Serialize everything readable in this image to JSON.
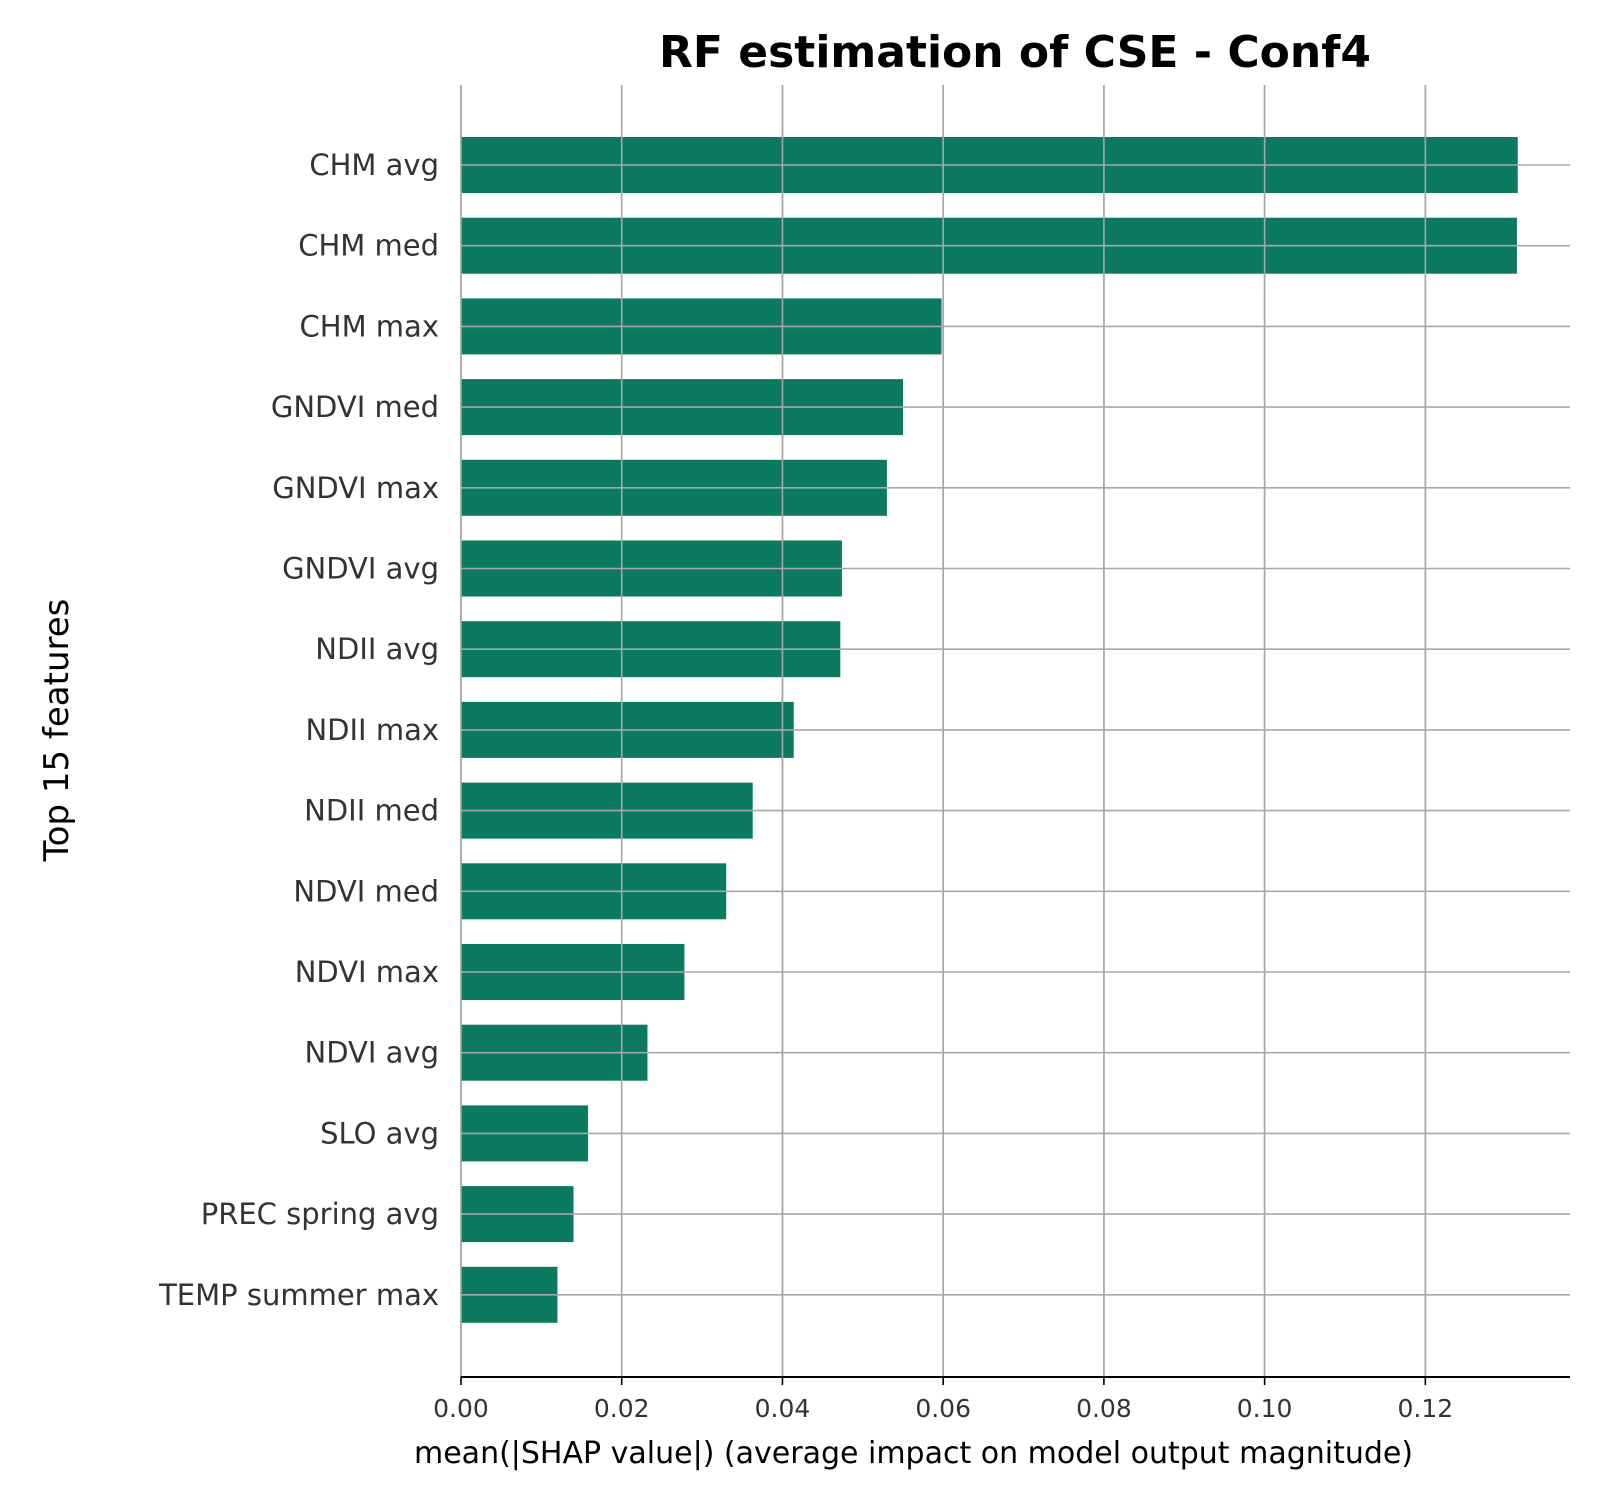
{
  "chart_data": {
    "type": "bar",
    "orientation": "horizontal",
    "title": "RF estimation of CSE - Conf4",
    "xlabel": "mean(|SHAP value|) (average impact on model output magnitude)",
    "ylabel": "Top 15 features",
    "categories": [
      "CHM avg",
      "CHM med",
      "CHM max",
      "GNDVI med",
      "GNDVI max",
      "GNDVI avg",
      "NDII avg",
      "NDII max",
      "NDII med",
      "NDVI med",
      "NDVI max",
      "NDVI avg",
      "SLO avg",
      "PREC spring avg",
      "TEMP summer max"
    ],
    "values": [
      0.1315,
      0.1314,
      0.0598,
      0.055,
      0.053,
      0.0474,
      0.0472,
      0.0414,
      0.0363,
      0.033,
      0.0278,
      0.0232,
      0.0158,
      0.014,
      0.012
    ],
    "xlim": [
      0,
      0.138
    ],
    "xticks": [
      0.0,
      0.02,
      0.04,
      0.06,
      0.08,
      0.1,
      0.12
    ],
    "xtick_labels": [
      "0.00",
      "0.02",
      "0.04",
      "0.06",
      "0.08",
      "0.10",
      "0.12"
    ],
    "grid": true,
    "bar_color": "#0b7a5e",
    "grid_color": "#a8a8a8"
  }
}
